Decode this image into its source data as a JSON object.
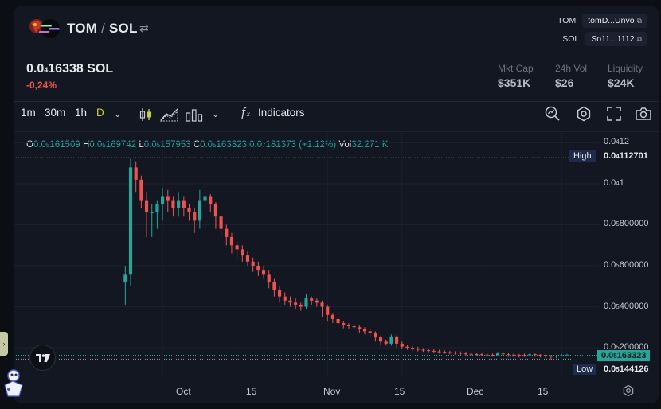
{
  "header": {
    "pair_base": "TOM",
    "pair_sep": "/",
    "pair_quote": "SOL",
    "swap_icon": "swap-arrows-icon",
    "addresses": [
      {
        "symbol": "TOM",
        "address": "tomD...Unvo"
      },
      {
        "symbol": "SOL",
        "address": "So11...1112"
      }
    ]
  },
  "price": {
    "prefix": "0.0",
    "sub": "4",
    "digits": "16338",
    "unit": "SOL",
    "change": "-0,24%"
  },
  "stats": [
    {
      "label": "Mkt Cap",
      "value": "$351K"
    },
    {
      "label": "24h Vol",
      "value": "$26"
    },
    {
      "label": "Liquidity",
      "value": "$24K"
    }
  ],
  "toolbar": {
    "intervals": [
      "1m",
      "30m",
      "1h",
      "D"
    ],
    "indicators_label": "Indicators"
  },
  "ohlc": {
    "o_label": "O",
    "o_prefix": "0.0",
    "o_sub": "5",
    "o_digits": "161509",
    "h_label": "H",
    "h_prefix": "0.0",
    "h_sub": "5",
    "h_digits": "169742",
    "l_label": "L",
    "l_prefix": "0.0",
    "l_sub": "5",
    "l_digits": "157953",
    "c_label": "C",
    "c_prefix": "0.0",
    "c_sub": "5",
    "c_digits": "163323",
    "chg_prefix": "0.0",
    "chg_sub": "7",
    "chg_digits": "181373",
    "chg_pct": "(+1.12%)",
    "vol_label": "Vol",
    "vol_value": "32.271 K"
  },
  "y_axis": [
    {
      "prefix": "0.0",
      "sub": "4",
      "digits": "12"
    },
    {
      "prefix": "0.0",
      "sub": "4",
      "digits": "1"
    },
    {
      "prefix": "0.0",
      "sub": "5",
      "digits": "800000"
    },
    {
      "prefix": "0.0",
      "sub": "5",
      "digits": "600000"
    },
    {
      "prefix": "0.0",
      "sub": "5",
      "digits": "400000"
    },
    {
      "prefix": "0.0",
      "sub": "5",
      "digits": "200000"
    }
  ],
  "markers": {
    "high_label": "High",
    "high_prefix": "0.0",
    "high_sub": "4",
    "high_digits": "112701",
    "current_prefix": "0.0",
    "current_sub": "5",
    "current_digits": "163323",
    "low_label": "Low",
    "low_prefix": "0.0",
    "low_sub": "5",
    "low_digits": "144126"
  },
  "x_axis": [
    "Oct",
    "15",
    "Nov",
    "15",
    "Dec",
    "15"
  ],
  "colors": {
    "up": "#26a69a",
    "down": "#ef5350",
    "background": "#131722",
    "accent": "#c9d12a"
  },
  "chart_data": {
    "type": "candlestick",
    "x": [
      "Sep 24",
      "Sep 25",
      "Sep 26",
      "Sep 27",
      "Sep 28",
      "Sep 29",
      "Sep 30",
      "Oct 1",
      "Oct 2",
      "Oct 3",
      "Oct 4",
      "Oct 5",
      "Oct 6",
      "Oct 7",
      "Oct 8",
      "Oct 9",
      "Oct 10",
      "Oct 11",
      "Oct 12",
      "Oct 13",
      "Oct 14",
      "Oct 15",
      "Oct 16",
      "Oct 17",
      "Oct 18",
      "Oct 19",
      "Oct 20",
      "Oct 21",
      "Oct 22",
      "Oct 23",
      "Oct 24",
      "Oct 25",
      "Oct 26",
      "Oct 27",
      "Oct 28",
      "Oct 29",
      "Oct 30",
      "Oct 31",
      "Nov 1",
      "Nov 2",
      "Nov 3",
      "Nov 4",
      "Nov 5",
      "Nov 6",
      "Nov 7",
      "Nov 8",
      "Nov 9",
      "Nov 10",
      "Nov 11",
      "Nov 12",
      "Nov 13",
      "Nov 14",
      "Nov 15",
      "Nov 16",
      "Nov 17",
      "Nov 18",
      "Nov 19",
      "Nov 20",
      "Nov 21",
      "Nov 22",
      "Nov 23",
      "Nov 24",
      "Nov 25",
      "Nov 26",
      "Nov 27",
      "Nov 28",
      "Nov 29",
      "Nov 30",
      "Dec 1",
      "Dec 2",
      "Dec 3",
      "Dec 4",
      "Dec 5",
      "Dec 6",
      "Dec 7",
      "Dec 8",
      "Dec 9",
      "Dec 10",
      "Dec 11",
      "Dec 12",
      "Dec 13",
      "Dec 14",
      "Dec 15",
      "Dec 16"
    ],
    "open": [
      5.2e-05,
      5.6e-05,
      0.000108,
      0.000102,
      9.2e-05,
      8.6e-05,
      8.6e-05,
      9e-05,
      9.4e-05,
      9.2e-05,
      8.8e-05,
      9.2e-05,
      8.8e-05,
      8.6e-05,
      8.2e-05,
      9.2e-05,
      9.4e-05,
      9e-05,
      8.4e-05,
      7.8e-05,
      7.4e-05,
      7e-05,
      6.8e-05,
      6.5e-05,
      6.2e-05,
      6e-05,
      5.8e-05,
      5.6e-05,
      5.2e-05,
      4.8e-05,
      4.5e-05,
      4.3e-05,
      4.2e-05,
      4.1e-05,
      4e-05,
      4.4e-05,
      4.3e-05,
      4.2e-05,
      4e-05,
      3.6e-05,
      3.4e-05,
      3.2e-05,
      3.1e-05,
      3.05e-05,
      3e-05,
      2.9e-05,
      2.8e-05,
      2.7e-05,
      2.5e-05,
      2.3e-05,
      2.2e-05,
      2.55e-05,
      2.2e-05,
      2.05e-05,
      2e-05,
      1.95e-05,
      1.9e-05,
      1.88e-05,
      1.85e-05,
      1.82e-05,
      1.8e-05,
      1.78e-05,
      1.76e-05,
      1.75e-05,
      1.72e-05,
      1.7e-05,
      1.69e-05,
      1.68e-05,
      1.66e-05,
      1.65e-05,
      1.64e-05,
      1.72e-05,
      1.68e-05,
      1.66e-05,
      1.65e-05,
      1.64e-05,
      1.63e-05,
      1.68e-05,
      1.66e-05,
      1.64e-05,
      1.6e-05,
      1.58e-05,
      1.61e-05,
      1.63e-05
    ],
    "close": [
      5.6e-05,
      0.000108,
      0.000102,
      9.2e-05,
      8.6e-05,
      8.6e-05,
      9e-05,
      9.4e-05,
      9.2e-05,
      8.8e-05,
      9.2e-05,
      8.8e-05,
      8.6e-05,
      8.2e-05,
      9.2e-05,
      9.4e-05,
      9e-05,
      8.4e-05,
      7.8e-05,
      7.4e-05,
      7e-05,
      6.8e-05,
      6.5e-05,
      6.2e-05,
      6e-05,
      5.8e-05,
      5.6e-05,
      5.2e-05,
      4.8e-05,
      4.5e-05,
      4.3e-05,
      4.2e-05,
      4.1e-05,
      4e-05,
      4.4e-05,
      4.3e-05,
      4.2e-05,
      4e-05,
      3.6e-05,
      3.4e-05,
      3.2e-05,
      3.1e-05,
      3.05e-05,
      3e-05,
      2.9e-05,
      2.8e-05,
      2.7e-05,
      2.5e-05,
      2.3e-05,
      2.2e-05,
      2.55e-05,
      2.2e-05,
      2.05e-05,
      2e-05,
      1.95e-05,
      1.9e-05,
      1.88e-05,
      1.85e-05,
      1.82e-05,
      1.8e-05,
      1.78e-05,
      1.76e-05,
      1.75e-05,
      1.72e-05,
      1.7e-05,
      1.69e-05,
      1.68e-05,
      1.66e-05,
      1.65e-05,
      1.64e-05,
      1.72e-05,
      1.68e-05,
      1.66e-05,
      1.65e-05,
      1.64e-05,
      1.63e-05,
      1.68e-05,
      1.66e-05,
      1.64e-05,
      1.6e-05,
      1.58e-05,
      1.61e-05,
      1.63e-05,
      1.63e-05
    ],
    "high": [
      6e-05,
      0.0001127,
      0.000111,
      0.000104,
      9.6e-05,
      9e-05,
      9.2e-05,
      9.8e-05,
      9.7e-05,
      9.4e-05,
      9.6e-05,
      9.4e-05,
      9e-05,
      8.8e-05,
      9.7e-05,
      9.9e-05,
      9.5e-05,
      9.1e-05,
      8.5e-05,
      8e-05,
      7.6e-05,
      7.2e-05,
      7e-05,
      6.7e-05,
      6.4e-05,
      6.2e-05,
      6e-05,
      5.8e-05,
      5.4e-05,
      5e-05,
      4.7e-05,
      4.5e-05,
      4.4e-05,
      4.2e-05,
      4.6e-05,
      4.5e-05,
      4.4e-05,
      4.3e-05,
      4.1e-05,
      3.7e-05,
      3.5e-05,
      3.3e-05,
      3.2e-05,
      3.15e-05,
      3.1e-05,
      3e-05,
      2.9e-05,
      2.8e-05,
      2.6e-05,
      2.4e-05,
      2.65e-05,
      2.6e-05,
      2.3e-05,
      2.15e-05,
      2.1e-05,
      2.05e-05,
      1.98e-05,
      1.95e-05,
      1.92e-05,
      1.9e-05,
      1.88e-05,
      1.85e-05,
      1.83e-05,
      1.82e-05,
      1.8e-05,
      1.78e-05,
      1.76e-05,
      1.75e-05,
      1.72e-05,
      1.72e-05,
      1.8e-05,
      1.78e-05,
      1.75e-05,
      1.72e-05,
      1.7e-05,
      1.72e-05,
      1.75e-05,
      1.72e-05,
      1.68e-05,
      1.66e-05,
      1.64e-05,
      1.65e-05,
      1.69e-05,
      1.7e-05
    ],
    "low": [
      4.1e-05,
      5e-05,
      9.6e-05,
      8.8e-05,
      7.4e-05,
      7.4e-05,
      7.8e-05,
      8.2e-05,
      8.6e-05,
      8.4e-05,
      8.4e-05,
      8.4e-05,
      8.2e-05,
      7.6e-05,
      7.8e-05,
      8.8e-05,
      8.6e-05,
      7.8e-05,
      7.4e-05,
      7e-05,
      6.6e-05,
      6.4e-05,
      6.2e-05,
      6e-05,
      5.7e-05,
      5.5e-05,
      5.4e-05,
      4.9e-05,
      4.5e-05,
      4.2e-05,
      4.1e-05,
      4e-05,
      3.9e-05,
      3.8e-05,
      3.9e-05,
      4.1e-05,
      4e-05,
      3.5e-05,
      3.3e-05,
      3.2e-05,
      3e-05,
      2.95e-05,
      2.9e-05,
      2.85e-05,
      2.7e-05,
      2.65e-05,
      2.5e-05,
      2.3e-05,
      2.15e-05,
      2.1e-05,
      2.1e-05,
      2e-05,
      1.95e-05,
      1.9e-05,
      1.85e-05,
      1.82e-05,
      1.8e-05,
      1.78e-05,
      1.75e-05,
      1.72e-05,
      1.7e-05,
      1.68e-05,
      1.66e-05,
      1.65e-05,
      1.63e-05,
      1.62e-05,
      1.6e-05,
      1.6e-05,
      1.58e-05,
      1.56e-05,
      1.6e-05,
      1.58e-05,
      1.56e-05,
      1.55e-05,
      1.52e-05,
      1.55e-05,
      1.58e-05,
      1.56e-05,
      1.52e-05,
      1.5e-05,
      1.44e-05,
      1.5e-05,
      1.58e-05,
      1.6e-05
    ],
    "ylim": [
      3.5e-06,
      0.000129
    ],
    "xlim": [
      "Sep 3",
      "Dec 22"
    ],
    "grid": true
  }
}
